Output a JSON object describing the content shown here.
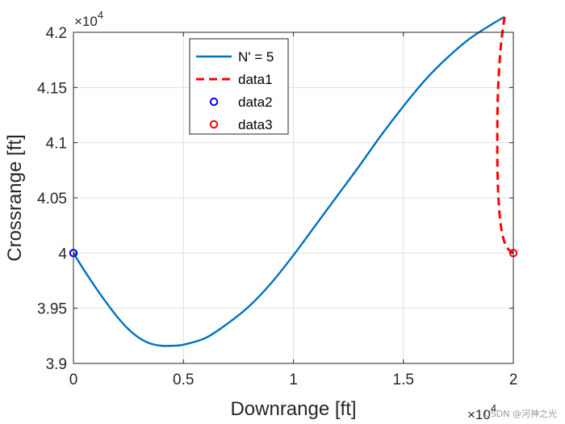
{
  "chart_data": {
    "type": "line",
    "xlabel": "Downrange [ft]",
    "ylabel": "Crossrange [ft]",
    "xlim": [
      0,
      20000
    ],
    "ylim": [
      39000,
      42000
    ],
    "grid": true,
    "x_exponent": "×10",
    "x_exponent_power": "4",
    "y_exponent": "×10",
    "y_exponent_power": "4",
    "x_ticks": [
      {
        "value": 0,
        "label": "0"
      },
      {
        "value": 5000,
        "label": "0.5"
      },
      {
        "value": 10000,
        "label": "1"
      },
      {
        "value": 15000,
        "label": "1.5"
      },
      {
        "value": 20000,
        "label": "2"
      }
    ],
    "y_ticks": [
      {
        "value": 39000,
        "label": "3.9"
      },
      {
        "value": 39500,
        "label": "3.95"
      },
      {
        "value": 40000,
        "label": "4"
      },
      {
        "value": 40500,
        "label": "4.05"
      },
      {
        "value": 41000,
        "label": "4.1"
      },
      {
        "value": 41500,
        "label": "4.15"
      },
      {
        "value": 42000,
        "label": "4.2"
      }
    ],
    "legend_position": "top-center",
    "series": [
      {
        "name": "N' = 5",
        "style": "solid",
        "color": "#0072BD",
        "x": [
          0,
          500,
          1000,
          1500,
          2000,
          2500,
          3000,
          3500,
          4000,
          4500,
          5000,
          6000,
          7000,
          8000,
          9000,
          10000,
          11000,
          12000,
          13000,
          14000,
          15000,
          16000,
          17000,
          18000,
          19000,
          19600
        ],
        "y": [
          40000,
          39840,
          39690,
          39550,
          39420,
          39310,
          39230,
          39180,
          39160,
          39160,
          39170,
          39230,
          39360,
          39520,
          39730,
          39980,
          40250,
          40520,
          40790,
          41070,
          41330,
          41570,
          41770,
          41940,
          42070,
          42140
        ]
      },
      {
        "name": "data1",
        "style": "dashed",
        "color": "#FF0000",
        "x": [
          19600,
          19420,
          19300,
          19270,
          19300,
          19400,
          19550,
          19750,
          20000
        ],
        "y": [
          42140,
          41850,
          41450,
          41000,
          40600,
          40300,
          40130,
          40040,
          40000
        ]
      },
      {
        "name": "data2",
        "style": "marker",
        "color": "#0000FF",
        "x": [
          0
        ],
        "y": [
          40000
        ]
      },
      {
        "name": "data3",
        "style": "marker",
        "color": "#FF0000",
        "x": [
          20000
        ],
        "y": [
          40000
        ]
      }
    ]
  },
  "watermark": "CSDN @河神之光"
}
